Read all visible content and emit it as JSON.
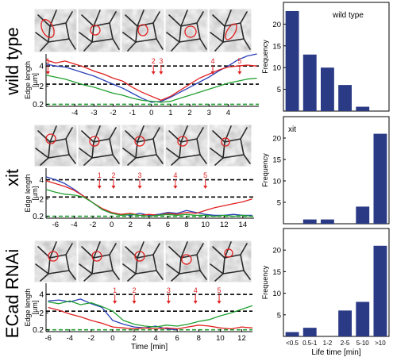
{
  "figure": {
    "row_labels": [
      "wild type",
      "xit",
      "ECad RNAi"
    ],
    "edge_axis_label": "Edge length [µm]",
    "frame_numbers": [
      "1",
      "2",
      "3",
      "4",
      "5"
    ]
  },
  "chart_data": [
    {
      "id": "trace-wildtype",
      "type": "line",
      "ylabel": "Edge length [µm]",
      "xlim": [
        -5.5,
        5.6
      ],
      "ylim": [
        0,
        5.2
      ],
      "x_ticks": [
        -4,
        -3,
        -2,
        -1,
        0,
        1,
        2,
        3,
        4
      ],
      "y_ticks": [
        0.2,
        2,
        4
      ],
      "reference_lines": [
        4,
        2.2,
        0.2
      ],
      "frame_marks": [
        {
          "label": "1",
          "x": -5.4
        },
        {
          "label": "2",
          "x": 0.1
        },
        {
          "label": "3",
          "x": 0.5
        },
        {
          "label": "4",
          "x": 3.2
        },
        {
          "label": "5",
          "x": 4.6
        }
      ],
      "series": [
        {
          "color": "#2a40b8",
          "x": [
            -5.5,
            -5.0,
            -4.5,
            -4.0,
            -3.5,
            -3.0,
            -2.5,
            -2.0,
            -1.5,
            -1.0,
            -0.5,
            0.0,
            0.5,
            1.0,
            1.5,
            2.0,
            2.5,
            3.0,
            3.5,
            4.0,
            4.5,
            5.0,
            5.5
          ],
          "y": [
            4.2,
            4.0,
            3.9,
            3.6,
            3.3,
            3.0,
            2.6,
            2.2,
            1.8,
            1.3,
            0.8,
            0.4,
            0.5,
            0.9,
            1.4,
            1.9,
            2.4,
            2.9,
            3.5,
            4.0,
            4.6,
            5.0,
            5.2
          ]
        },
        {
          "color": "#e02020",
          "x": [
            -5.5,
            -5.0,
            -4.5,
            -4.0,
            -3.5,
            -3.0,
            -2.5,
            -2.0,
            -1.5,
            -1.0,
            -0.5,
            0.0,
            0.5,
            1.0,
            1.5,
            2.0,
            2.5,
            3.0,
            3.5,
            4.0,
            4.5,
            5.0,
            5.5
          ],
          "y": [
            4.6,
            4.3,
            4.5,
            4.2,
            3.9,
            3.5,
            3.2,
            2.8,
            2.5,
            1.9,
            1.4,
            1.0,
            0.6,
            1.0,
            1.6,
            2.2,
            2.8,
            3.2,
            3.6,
            3.9,
            4.0,
            4.1,
            4.0
          ]
        },
        {
          "color": "#20a030",
          "x": [
            -5.5,
            -5.0,
            -4.5,
            -4.0,
            -3.5,
            -3.0,
            -2.5,
            -2.0,
            -1.5,
            -1.0,
            -0.5,
            0.0,
            0.5,
            1.0,
            1.5,
            2.0,
            2.5,
            3.0,
            3.5,
            4.0,
            4.5,
            5.0,
            5.5
          ],
          "y": [
            3.1,
            2.9,
            2.7,
            2.4,
            2.1,
            1.9,
            1.6,
            1.3,
            1.1,
            0.8,
            0.6,
            0.5,
            0.4,
            0.5,
            0.8,
            1.1,
            1.4,
            1.7,
            2.0,
            2.3,
            2.5,
            2.7,
            2.8
          ]
        }
      ]
    },
    {
      "id": "trace-xit",
      "type": "line",
      "ylabel": "Edge length [µm]",
      "xlim": [
        -7,
        15.2
      ],
      "ylim": [
        0,
        5.2
      ],
      "x_ticks": [
        -6,
        -4,
        -2,
        0,
        2,
        4,
        6,
        8,
        10,
        12,
        14
      ],
      "y_ticks": [
        0.2,
        2,
        4
      ],
      "reference_lines": [
        4,
        2.2,
        0.2
      ],
      "frame_marks": [
        {
          "label": "1",
          "x": -1.3
        },
        {
          "label": "2",
          "x": 0.2
        },
        {
          "label": "3",
          "x": 3.0
        },
        {
          "label": "4",
          "x": 6.8
        },
        {
          "label": "5",
          "x": 10.0
        }
      ],
      "series": [
        {
          "color": "#2a40b8",
          "x": [
            -7,
            -6,
            -5,
            -4,
            -3,
            -2,
            -1,
            0,
            1,
            2,
            3,
            4,
            5,
            6,
            7,
            8,
            9,
            10,
            11,
            12,
            13,
            14,
            15
          ],
          "y": [
            4.3,
            4.0,
            3.6,
            3.0,
            2.3,
            1.6,
            0.9,
            0.5,
            0.4,
            0.3,
            0.5,
            0.3,
            0.4,
            0.6,
            0.5,
            0.8,
            0.6,
            0.4,
            0.3,
            0.3,
            0.4,
            0.3,
            0.3
          ]
        },
        {
          "color": "#e02020",
          "x": [
            -7,
            -6,
            -5,
            -4,
            -3,
            -2,
            -1,
            0,
            1,
            2,
            3,
            4,
            5,
            6,
            7,
            8,
            9,
            10,
            11,
            12,
            13,
            14,
            15
          ],
          "y": [
            3.9,
            3.6,
            3.3,
            2.9,
            2.3,
            1.6,
            1.0,
            0.6,
            0.4,
            0.5,
            0.3,
            0.4,
            0.3,
            0.5,
            0.4,
            0.6,
            0.5,
            0.8,
            1.1,
            1.3,
            1.5,
            1.7,
            2.0
          ]
        },
        {
          "color": "#20a030",
          "x": [
            -7,
            -6,
            -5,
            -4,
            -3,
            -2,
            -1,
            0,
            1,
            2,
            3,
            4,
            5,
            6,
            7,
            8,
            9,
            10,
            11,
            12,
            13,
            14,
            15
          ],
          "y": [
            3.0,
            2.7,
            2.5,
            2.4,
            2.2,
            1.6,
            0.9,
            0.5,
            0.3,
            0.4,
            0.3,
            0.2,
            0.3,
            0.4,
            0.3,
            0.4,
            0.3,
            0.3,
            0.2,
            0.3,
            0.2,
            0.3,
            0.2
          ]
        }
      ]
    },
    {
      "id": "trace-ecad",
      "type": "line",
      "ylabel": "Edge length [µm]",
      "xlabel": "Time [min]",
      "xlim": [
        -6.2,
        13
      ],
      "ylim": [
        0,
        5.2
      ],
      "x_ticks": [
        -6,
        -4,
        -2,
        0,
        2,
        4,
        6,
        8,
        10,
        12
      ],
      "y_ticks": [
        0.2,
        2,
        4
      ],
      "reference_lines": [
        4,
        2.2,
        0.2
      ],
      "frame_marks": [
        {
          "label": "1",
          "x": 0.2
        },
        {
          "label": "2",
          "x": 2.0
        },
        {
          "label": "3",
          "x": 5.2
        },
        {
          "label": "4",
          "x": 7.7
        },
        {
          "label": "5",
          "x": 9.9
        }
      ],
      "series": [
        {
          "color": "#2a40b8",
          "x": [
            -6,
            -5,
            -4,
            -3,
            -2,
            -1,
            0,
            1,
            2,
            3,
            4,
            5,
            6
          ],
          "y": [
            3.3,
            3.4,
            3.2,
            3.5,
            3.0,
            2.6,
            1.2,
            0.8,
            0.5,
            0.4,
            0.6,
            0.3,
            0.2
          ]
        },
        {
          "color": "#e02020",
          "x": [
            -6,
            -5,
            -4,
            -3,
            -2,
            -1,
            0,
            1,
            2,
            3,
            4,
            5,
            6,
            7,
            8,
            9,
            10,
            11,
            12,
            13
          ],
          "y": [
            2.6,
            2.3,
            1.9,
            1.6,
            1.2,
            0.9,
            0.5,
            0.4,
            0.3,
            0.4,
            0.3,
            0.4,
            0.3,
            0.5,
            0.7,
            0.6,
            0.4,
            0.3,
            0.5,
            0.4
          ]
        },
        {
          "color": "#20a030",
          "x": [
            -6,
            -5,
            -4,
            -3,
            -2,
            -1,
            0,
            1,
            2,
            3,
            4,
            5,
            6,
            7,
            8,
            9,
            10,
            11,
            12,
            13
          ],
          "y": [
            3.2,
            3.0,
            3.3,
            2.9,
            3.1,
            2.7,
            2.2,
            1.2,
            0.8,
            0.6,
            0.5,
            0.7,
            0.6,
            0.8,
            1.1,
            1.3,
            1.7,
            2.0,
            2.4,
            2.8
          ]
        }
      ]
    },
    {
      "id": "hist-wildtype",
      "type": "bar",
      "annotation": "wild type",
      "ylabel": "Frequency",
      "categories": [
        "<0.5",
        "0.5-1",
        "1-2",
        "2-5",
        "5-10",
        ">10"
      ],
      "values": [
        23,
        13,
        10,
        6,
        1,
        0
      ],
      "ylim": [
        0,
        25
      ],
      "y_ticks": [
        5,
        10,
        15,
        20
      ],
      "bar_color": "#2b3a85"
    },
    {
      "id": "hist-xit",
      "type": "bar",
      "annotation": "xit",
      "ylabel": "Frequency",
      "categories": [
        "<0.5",
        "0.5-1",
        "1-2",
        "2-5",
        "5-10",
        ">10"
      ],
      "values": [
        0,
        1,
        1,
        0,
        4,
        21
      ],
      "ylim": [
        0,
        25
      ],
      "y_ticks": [
        5,
        10,
        15,
        20
      ],
      "bar_color": "#2b3a85"
    },
    {
      "id": "hist-ecad",
      "type": "bar",
      "ylabel": "Frequency",
      "xlabel": "Life time [min]",
      "categories": [
        "<0.5",
        "0.5-1",
        "1-2",
        "2-5",
        "5-10",
        ">10"
      ],
      "values": [
        1,
        2,
        0,
        6,
        8,
        21
      ],
      "ylim": [
        0,
        25
      ],
      "y_ticks": [
        5,
        10,
        15,
        20
      ],
      "bar_color": "#2b3a85"
    }
  ]
}
